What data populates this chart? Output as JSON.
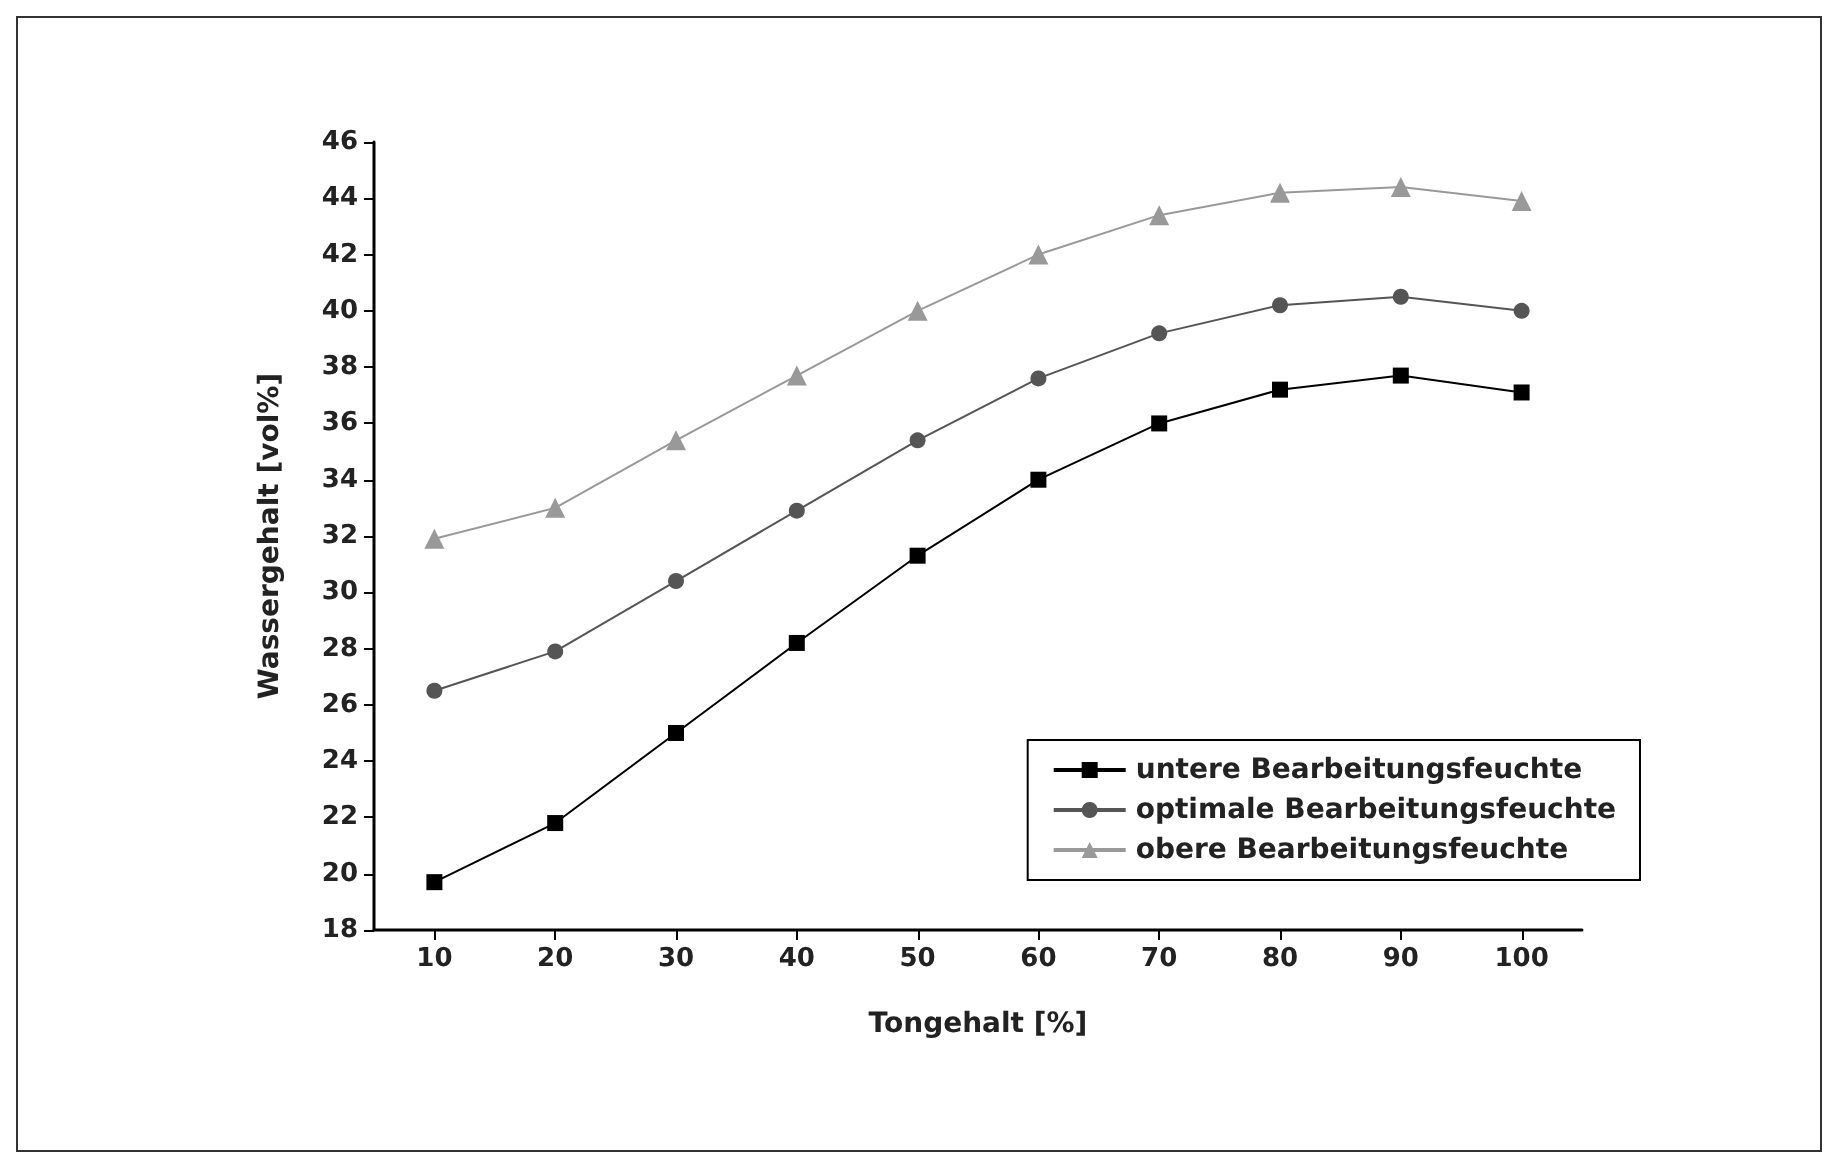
{
  "chart_data": {
    "type": "line",
    "xlabel": "Tongehalt [%]",
    "ylabel": "Wassergehalt [vol%]",
    "x": [
      10,
      20,
      30,
      40,
      50,
      60,
      70,
      80,
      90,
      100
    ],
    "xlim": [
      5,
      105
    ],
    "xticks": [
      10,
      20,
      30,
      40,
      50,
      60,
      70,
      80,
      90,
      100
    ],
    "ylim": [
      18,
      46
    ],
    "yticks": [
      18,
      20,
      22,
      24,
      26,
      28,
      30,
      32,
      34,
      36,
      38,
      40,
      42,
      44,
      46
    ],
    "grid": false,
    "legend": "bottom right",
    "series": [
      {
        "name": "untere Bearbeitungsfeuchte",
        "color": "#000000",
        "marker": "square",
        "values": [
          19.7,
          21.8,
          25.0,
          28.2,
          31.3,
          34.0,
          36.0,
          37.2,
          37.7,
          37.1
        ]
      },
      {
        "name": "optimale Bearbeitungsfeuchte",
        "color": "#555555",
        "marker": "circle",
        "values": [
          26.5,
          27.9,
          30.4,
          32.9,
          35.4,
          37.6,
          39.2,
          40.2,
          40.5,
          40.0
        ]
      },
      {
        "name": "obere Bearbeitungsfeuchte",
        "color": "#999999",
        "marker": "triangle",
        "values": [
          31.9,
          33.0,
          35.4,
          37.7,
          40.0,
          42.0,
          43.4,
          44.2,
          44.4,
          43.9
        ]
      }
    ]
  }
}
